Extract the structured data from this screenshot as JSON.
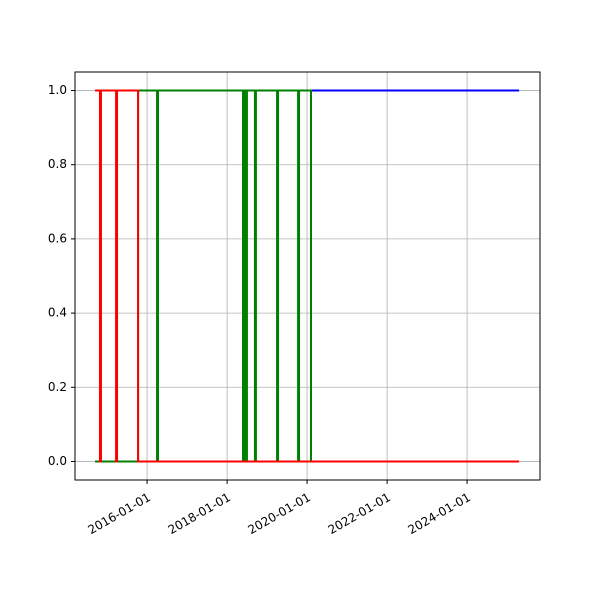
{
  "chart_data": {
    "type": "line",
    "step": true,
    "xlim": [
      "2014-03-14",
      "2025-10-28"
    ],
    "ylim": [
      -0.05,
      1.05
    ],
    "xticks": [
      "2016-01-01",
      "2018-01-01",
      "2020-01-01",
      "2022-01-01",
      "2024-01-01"
    ],
    "yticks": [
      {
        "value": 0,
        "label": "0.0"
      },
      {
        "value": 0.2,
        "label": "0.2"
      },
      {
        "value": 0.4,
        "label": "0.4"
      },
      {
        "value": 0.6,
        "label": "0.6"
      },
      {
        "value": 0.8,
        "label": "0.8"
      },
      {
        "value": 1,
        "label": "1.0"
      }
    ],
    "grid": true,
    "series": [
      {
        "color": "#0000ff",
        "x": [
          "2015-10-11",
          "2020-02-06",
          "2020-02-06",
          "2025-04-20"
        ],
        "values": [
          0,
          0,
          1,
          1
        ]
      },
      {
        "color": "#008000",
        "x": [
          "2014-09-13",
          "2015-10-11",
          "2015-10-11",
          "2016-04-01",
          "2016-04-01",
          "2016-04-10",
          "2016-04-10",
          "2018-05-26",
          "2018-05-26",
          "2018-06-04",
          "2018-06-04",
          "2018-06-22",
          "2018-06-22",
          "2018-07-01",
          "2018-07-01",
          "2018-09-12",
          "2018-09-12",
          "2018-09-21",
          "2018-09-21",
          "2019-04-02",
          "2019-04-02",
          "2019-04-11",
          "2019-04-11",
          "2019-10-11",
          "2019-10-11",
          "2019-10-20",
          "2019-10-20",
          "2020-02-06",
          "2020-02-06"
        ],
        "values": [
          0,
          0,
          1,
          1,
          0,
          0,
          1,
          1,
          0,
          0,
          1,
          1,
          0,
          0,
          1,
          1,
          0,
          0,
          1,
          1,
          0,
          0,
          1,
          1,
          0,
          0,
          1,
          1,
          0
        ]
      },
      {
        "color": "#ff0000",
        "x": [
          "2014-09-13",
          "2014-10-28",
          "2014-10-28",
          "2014-11-06",
          "2014-11-06",
          "2015-03-24",
          "2015-03-24",
          "2015-04-02",
          "2015-04-02",
          "2015-10-11",
          "2015-10-11",
          "2025-04-20"
        ],
        "values": [
          1,
          1,
          0,
          0,
          1,
          1,
          0,
          0,
          1,
          1,
          0,
          0
        ]
      }
    ]
  }
}
